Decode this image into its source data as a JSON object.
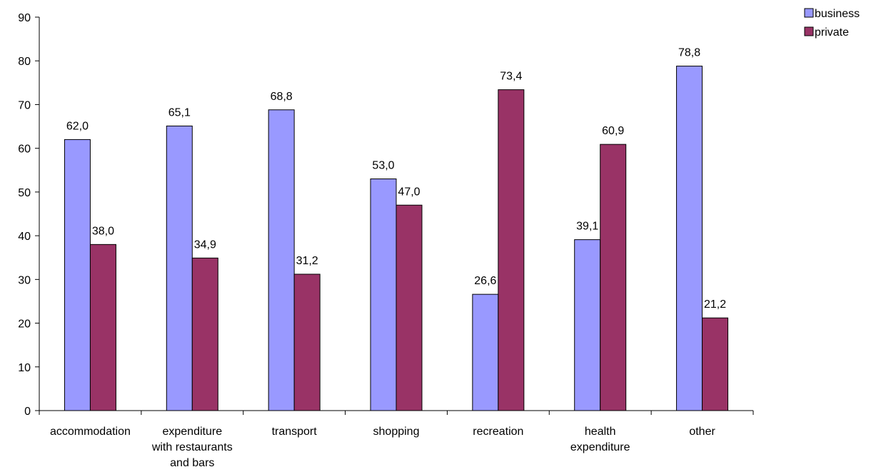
{
  "chart_data": {
    "type": "bar",
    "categories": [
      [
        "accommodation"
      ],
      [
        "expenditure",
        "with restaurants",
        "and bars"
      ],
      [
        "transport"
      ],
      [
        "shopping"
      ],
      [
        "recreation"
      ],
      [
        "health",
        "expenditure"
      ],
      [
        "other"
      ]
    ],
    "series": [
      {
        "name": "business",
        "color": "#9999ff",
        "values": [
          62.0,
          65.1,
          68.8,
          53.0,
          26.6,
          39.1,
          78.8
        ],
        "labels": [
          "62,0",
          "65,1",
          "68,8",
          "53,0",
          "26,6",
          "39,1",
          "78,8"
        ]
      },
      {
        "name": "private",
        "color": "#993366",
        "values": [
          38.0,
          34.9,
          31.2,
          47.0,
          73.4,
          60.9,
          21.2
        ],
        "labels": [
          "38,0",
          "34,9",
          "31,2",
          "47,0",
          "73,4",
          "60,9",
          "21,2"
        ]
      }
    ],
    "ylim": [
      0,
      90
    ],
    "yticks": [
      "0",
      "10",
      "20",
      "30",
      "40",
      "50",
      "60",
      "70",
      "80",
      "90"
    ],
    "grid": false,
    "legend": "top-right",
    "title": "",
    "xlabel": "",
    "ylabel": ""
  }
}
